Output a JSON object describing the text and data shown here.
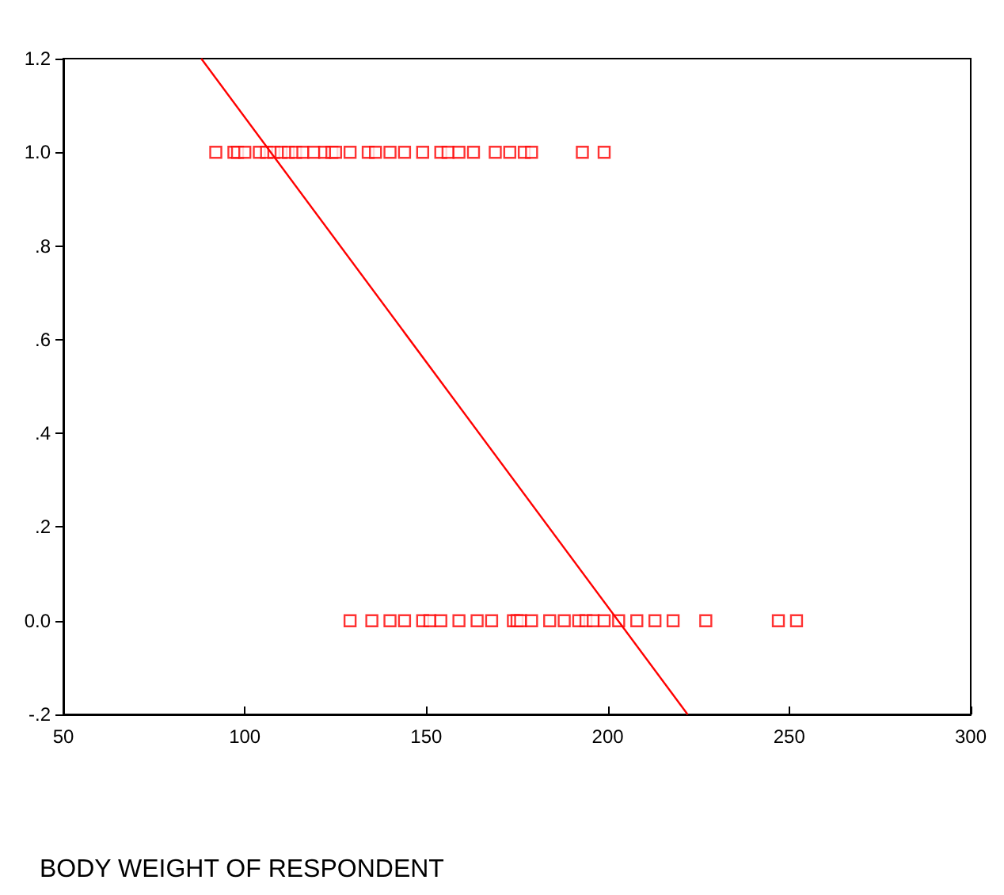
{
  "chart_data": {
    "type": "scatter",
    "xlabel": "BODY WEIGHT OF RESPONDENT",
    "marker": "square",
    "grid": false,
    "xlim": [
      50,
      300
    ],
    "xticks": [
      50,
      100,
      150,
      200,
      250,
      300
    ],
    "ylim": [
      -0.2,
      1.2
    ],
    "yticks": [
      {
        "value": -0.2,
        "label": "-.2"
      },
      {
        "value": 0,
        "label": "0.0"
      },
      {
        "value": 0.2,
        "label": ".2"
      },
      {
        "value": 0.4,
        "label": ".4"
      },
      {
        "value": 0.6,
        "label": ".6"
      },
      {
        "value": 0.8,
        "label": ".8"
      },
      {
        "value": 1,
        "label": "1.0"
      },
      {
        "value": 1.2,
        "label": "1.2"
      }
    ],
    "series": [
      {
        "color": "#ff0000",
        "x": [
          92,
          97,
          98,
          100,
          104,
          106,
          108,
          110,
          112,
          114,
          116,
          119,
          122,
          124,
          125,
          129,
          134,
          136,
          140,
          144,
          149,
          154,
          156,
          159,
          163,
          169,
          173,
          177,
          179,
          193,
          199
        ],
        "values": [
          1,
          1,
          1,
          1,
          1,
          1,
          1,
          1,
          1,
          1,
          1,
          1,
          1,
          1,
          1,
          1,
          1,
          1,
          1,
          1,
          1,
          1,
          1,
          1,
          1,
          1,
          1,
          1,
          1,
          1,
          1
        ]
      },
      {
        "color": "#ff0000",
        "x": [
          129,
          135,
          140,
          144,
          149,
          151,
          154,
          159,
          164,
          168,
          174,
          175,
          176,
          179,
          184,
          188,
          192,
          194,
          196,
          199,
          203,
          208,
          213,
          218,
          227,
          247,
          252
        ],
        "values": [
          0,
          0,
          0,
          0,
          0,
          0,
          0,
          0,
          0,
          0,
          0,
          0,
          0,
          0,
          0,
          0,
          0,
          0,
          0,
          0,
          0,
          0,
          0,
          0,
          0,
          0,
          0
        ]
      },
      {
        "type": "line",
        "marker": "none",
        "color": "#ff0000",
        "x": [
          88,
          222
        ],
        "values": [
          1.2,
          -0.2
        ]
      }
    ]
  }
}
